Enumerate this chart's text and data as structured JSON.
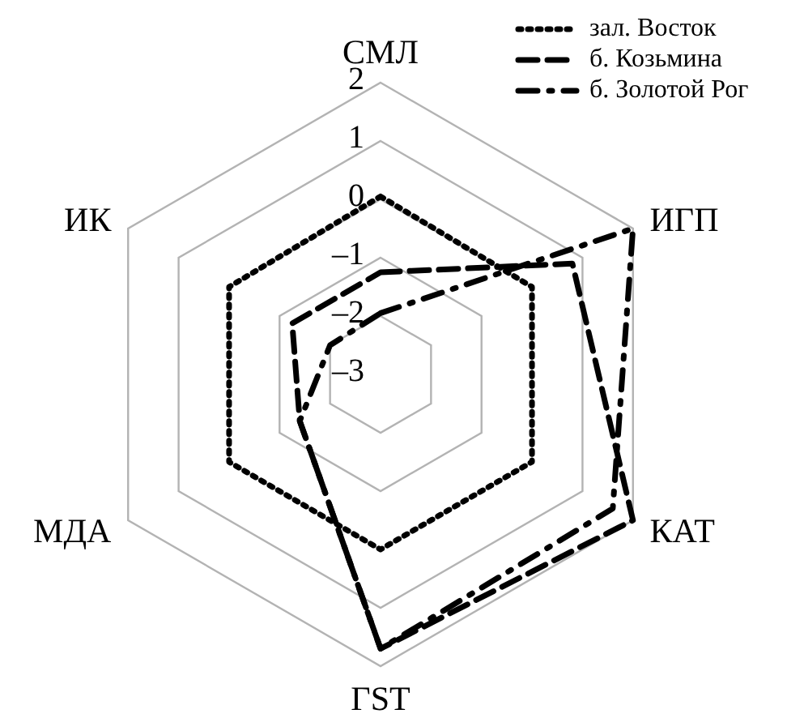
{
  "chart_data": {
    "type": "radar",
    "categories": [
      "СМЛ",
      "ИГП",
      "КАТ",
      "ГST",
      "МДА",
      "ИК"
    ],
    "series": [
      {
        "name": "зал. Восток",
        "color": "#000000",
        "line_style": "dotted",
        "values": [
          0.05,
          0,
          0,
          0,
          0,
          0
        ]
      },
      {
        "name": "б. Козьмина",
        "color": "#000000",
        "line_style": "dashed",
        "values": [
          -1.25,
          0.8,
          2,
          1.7,
          -1.4,
          -1.25
        ]
      },
      {
        "name": "б. Золотой Рог",
        "color": "#000000",
        "line_style": "dashdot",
        "values": [
          -1.95,
          2,
          1.6,
          1.7,
          -1.4,
          -2
        ]
      }
    ],
    "ylim": [
      -3,
      2
    ],
    "yticks": [
      {
        "value": -3,
        "label": "–3"
      },
      {
        "value": -2,
        "label": "–2"
      },
      {
        "value": -1,
        "label": "–1"
      },
      0,
      1,
      2
    ],
    "grid": true,
    "legend": "top right",
    "marker": "none"
  }
}
